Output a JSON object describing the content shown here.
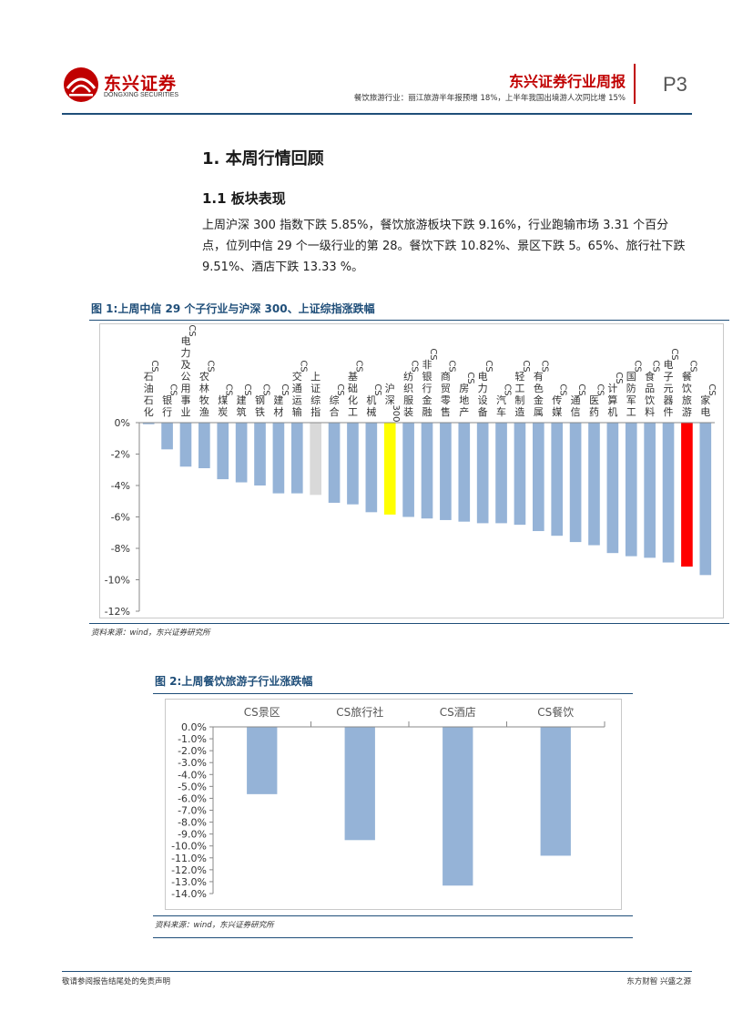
{
  "header": {
    "logo_cn": "东兴证券",
    "logo_en": "DONGXING SECURITIES",
    "report_title": "东兴证券行业周报",
    "subtitle": "餐饮旅游行业：丽江旅游半年报预增 18%，上半年我国出境游人次同比增 15%",
    "page": "P3"
  },
  "section": {
    "h1": "1. 本周行情回顾",
    "h2": "1.1 板块表现",
    "paragraph": "上周沪深 300 指数下跌 5.85%，餐饮旅游板块下跌 9.16%，行业跑输市场 3.31 个百分点，位列中信 29 个一级行业的第 28。餐饮下跌 10.82%、景区下跌 5。65%、旅行社下跌 9.51%、酒店下跌 13.33 %。"
  },
  "colors": {
    "bar_default": "#95b3d7",
    "bar_index_sz": "#d9d9d9",
    "bar_hs300": "#ffff00",
    "bar_highlight": "#ff0000",
    "brand_red": "#c00000",
    "brand_blue": "#1f4e79"
  },
  "figure1": {
    "caption": "图 1:上周中信 29 个子行业与沪深 300、上证综指涨跌幅",
    "source": "资料来源：wind，东兴证券研究所"
  },
  "figure2": {
    "caption": "图 2:上周餐饮旅游子行业涨跌幅",
    "source": "资料来源：wind，东兴证券研究所"
  },
  "footer": {
    "left": "敬请参阅报告结尾处的免责声明",
    "right": "东方财智 兴盛之源"
  },
  "chart_data": [
    {
      "type": "bar",
      "categories": [
        "CS石油石化",
        "CS银行",
        "CS电力及公用事业",
        "CS农林牧渔",
        "CS煤炭",
        "CS建筑",
        "CS钢铁",
        "CS建材",
        "CS交通运输",
        "上证综指",
        "CS综合",
        "CS基础化工",
        "CS机械",
        "沪深300",
        "CS纺织服装",
        "CS非银行金融",
        "CS商贸零售",
        "CS房地产",
        "CS电力设备",
        "CS汽车",
        "CS轻工制造",
        "CS有色金属",
        "CS传媒",
        "CS通信",
        "CS医药",
        "CS计算机",
        "CS国防军工",
        "CS食品饮料",
        "CS电子元器件",
        "CS餐饮旅游",
        "CS家电"
      ],
      "values": [
        -0.1,
        -1.7,
        -2.8,
        -2.9,
        -3.6,
        -3.8,
        -4.0,
        -4.5,
        -4.5,
        -4.6,
        -5.1,
        -5.2,
        -5.7,
        -5.85,
        -6.0,
        -6.1,
        -6.2,
        -6.3,
        -6.4,
        -6.4,
        -6.5,
        -6.9,
        -7.2,
        -7.6,
        -7.8,
        -8.3,
        -8.5,
        -8.6,
        -8.9,
        -9.16,
        -9.7
      ],
      "colors": [
        "#95b3d7",
        "#95b3d7",
        "#95b3d7",
        "#95b3d7",
        "#95b3d7",
        "#95b3d7",
        "#95b3d7",
        "#95b3d7",
        "#95b3d7",
        "#d9d9d9",
        "#95b3d7",
        "#95b3d7",
        "#95b3d7",
        "#ffff00",
        "#95b3d7",
        "#95b3d7",
        "#95b3d7",
        "#95b3d7",
        "#95b3d7",
        "#95b3d7",
        "#95b3d7",
        "#95b3d7",
        "#95b3d7",
        "#95b3d7",
        "#95b3d7",
        "#95b3d7",
        "#95b3d7",
        "#95b3d7",
        "#95b3d7",
        "#ff0000",
        "#95b3d7"
      ],
      "ylim": [
        -12,
        0
      ],
      "yticks": [
        0,
        -2,
        -4,
        -6,
        -8,
        -10,
        -12
      ],
      "ytick_labels": [
        "0%",
        "-2%",
        "-4%",
        "-6%",
        "-8%",
        "-10%",
        "-12%"
      ],
      "category_labels_position": "top",
      "grid": false
    },
    {
      "type": "bar",
      "categories": [
        "CS景区",
        "CS旅行社",
        "CS酒店",
        "CS餐饮"
      ],
      "values": [
        -5.65,
        -9.51,
        -13.33,
        -10.82
      ],
      "ylim": [
        -14,
        0
      ],
      "yticks": [
        0,
        -1,
        -2,
        -3,
        -4,
        -5,
        -6,
        -7,
        -8,
        -9,
        -10,
        -11,
        -12,
        -13,
        -14
      ],
      "ytick_labels": [
        "0.0%",
        "-1.0%",
        "-2.0%",
        "-3.0%",
        "-4.0%",
        "-5.0%",
        "-6.0%",
        "-7.0%",
        "-8.0%",
        "-9.0%",
        "-10.0%",
        "-11.0%",
        "-12.0%",
        "-13.0%",
        "-14.0%"
      ],
      "category_labels_position": "top",
      "grid": false
    }
  ]
}
